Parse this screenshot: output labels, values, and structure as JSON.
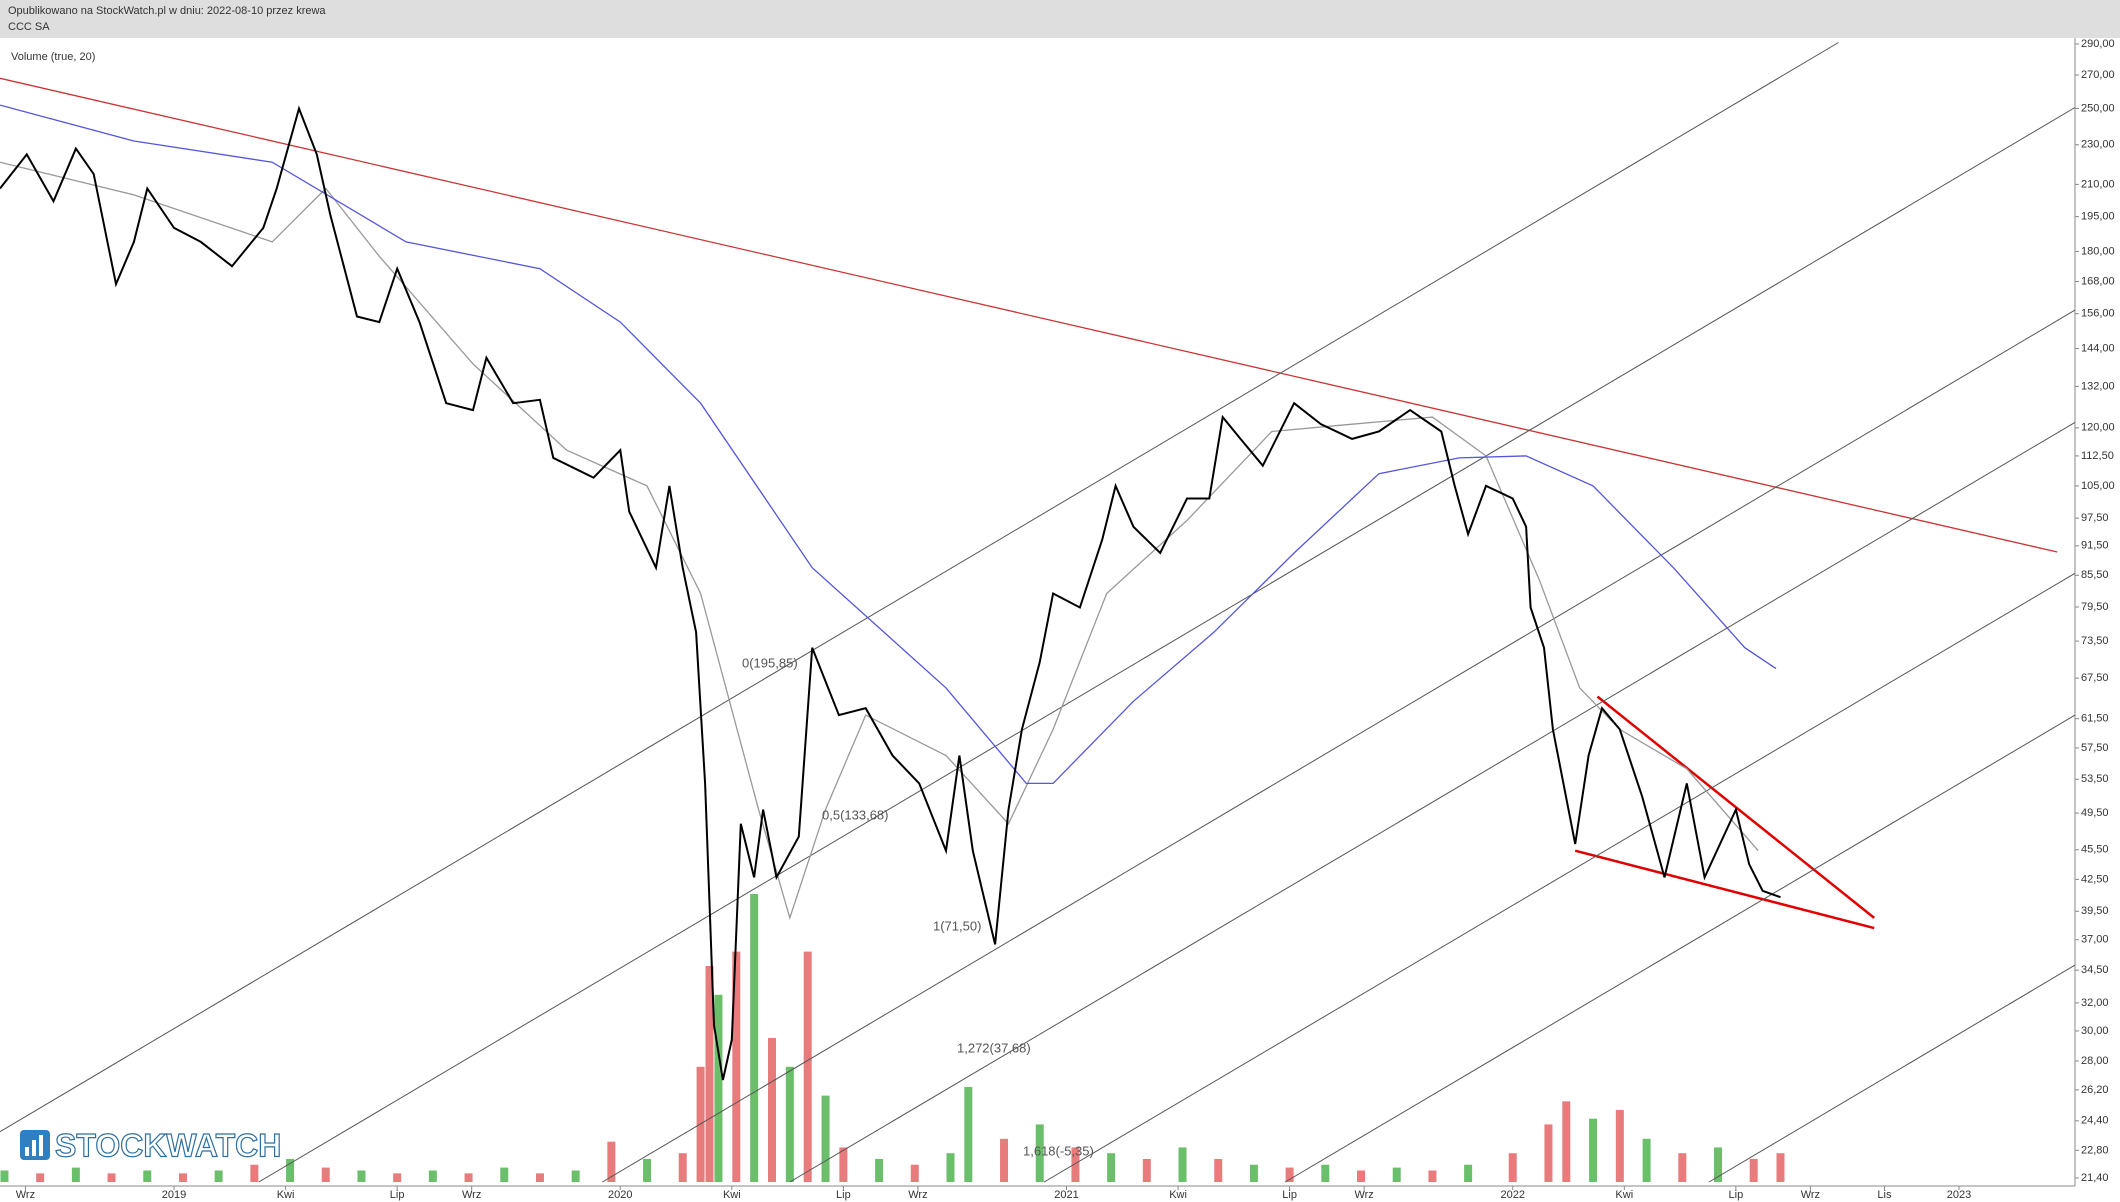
{
  "header": {
    "published": "Opublikowano na StockWatch.pl w dniu: 2022-08-10 przez krewa",
    "instrument": "CCC SA"
  },
  "chart_data": {
    "type": "line",
    "log_scale": true,
    "volume_label": "Volume (true, 20)",
    "logo": "STOCKWATCH",
    "xlim": [
      2018.61,
      2023.26
    ],
    "ylim": [
      21.2,
      294
    ],
    "y2lim": [
      0,
      100
    ],
    "xticks": [
      {
        "value": 2018.667,
        "label": "Wrz"
      },
      2019,
      {
        "value": 2019.25,
        "label": "Kwi"
      },
      {
        "value": 2019.5,
        "label": "Lip"
      },
      {
        "value": 2019.667,
        "label": "Wrz"
      },
      2020,
      {
        "value": 2020.25,
        "label": "Kwi"
      },
      {
        "value": 2020.5,
        "label": "Lip"
      },
      {
        "value": 2020.667,
        "label": "Wrz"
      },
      2021,
      {
        "value": 2021.25,
        "label": "Kwi"
      },
      {
        "value": 2021.5,
        "label": "Lip"
      },
      {
        "value": 2021.667,
        "label": "Wrz"
      },
      2022,
      {
        "value": 2022.25,
        "label": "Kwi"
      },
      {
        "value": 2022.5,
        "label": "Lip"
      },
      {
        "value": 2022.667,
        "label": "Wrz"
      },
      {
        "value": 2022.833,
        "label": "Lis"
      },
      2023
    ],
    "yticks": [
      {
        "value": 290,
        "label": "290,00"
      },
      {
        "value": 270,
        "label": "270,00"
      },
      {
        "value": 250,
        "label": "250,00"
      },
      {
        "value": 230,
        "label": "230,00"
      },
      {
        "value": 210,
        "label": "210,00"
      },
      {
        "value": 195,
        "label": "195,00"
      },
      {
        "value": 180,
        "label": "180,00"
      },
      {
        "value": 168,
        "label": "168,00"
      },
      {
        "value": 156,
        "label": "156,00"
      },
      {
        "value": 144,
        "label": "144,00"
      },
      {
        "value": 132,
        "label": "132,00"
      },
      {
        "value": 120,
        "label": "120,00"
      },
      {
        "value": 112.5,
        "label": "112,50"
      },
      {
        "value": 105,
        "label": "105,00"
      },
      {
        "value": 97.5,
        "label": "97,50"
      },
      {
        "value": 91.5,
        "label": "91,50"
      },
      {
        "value": 85.5,
        "label": "85,50"
      },
      {
        "value": 79.5,
        "label": "79,50"
      },
      {
        "value": 73.5,
        "label": "73,50"
      },
      {
        "value": 67.5,
        "label": "67,50"
      },
      {
        "value": 61.5,
        "label": "61,50"
      },
      {
        "value": 57.5,
        "label": "57,50"
      },
      {
        "value": 53.5,
        "label": "53,50"
      },
      {
        "value": 49.5,
        "label": "49,50"
      },
      {
        "value": 45.5,
        "label": "45,50"
      },
      {
        "value": 42.5,
        "label": "42,50"
      },
      {
        "value": 39.5,
        "label": "39,50"
      },
      {
        "value": 37,
        "label": "37,00"
      },
      {
        "value": 34.5,
        "label": "34,50"
      },
      {
        "value": 32,
        "label": "32,00"
      },
      {
        "value": 30,
        "label": "30,00"
      },
      {
        "value": 28,
        "label": "28,00"
      },
      {
        "value": 26.2,
        "label": "26,20"
      },
      {
        "value": 24.4,
        "label": "24,40"
      },
      {
        "value": 22.8,
        "label": "22,80"
      },
      {
        "value": 21.4,
        "label": "21,40"
      }
    ],
    "series": [
      {
        "color": "#000000",
        "width": 2,
        "x": [
          2018.61,
          2018.67,
          2018.73,
          2018.78,
          2018.82,
          2018.87,
          2018.91,
          2018.94,
          2019.0,
          2019.06,
          2019.13,
          2019.2,
          2019.23,
          2019.28,
          2019.32,
          2019.35,
          2019.41,
          2019.46,
          2019.5,
          2019.55,
          2019.61,
          2019.67,
          2019.7,
          2019.76,
          2019.82,
          2019.85,
          2019.94,
          2020.0,
          2020.02,
          2020.08,
          2020.11,
          2020.14,
          2020.17,
          2020.19,
          2020.21,
          2020.23,
          2020.25,
          2020.27,
          2020.3,
          2020.32,
          2020.35,
          2020.4,
          2020.43,
          2020.49,
          2020.55,
          2020.61,
          2020.67,
          2020.73,
          2020.76,
          2020.79,
          2020.84,
          2020.87,
          2020.9,
          2020.94,
          2020.97,
          2021.03,
          2021.08,
          2021.11,
          2021.15,
          2021.21,
          2021.27,
          2021.32,
          2021.35,
          2021.39,
          2021.44,
          2021.51,
          2021.57,
          2021.64,
          2021.7,
          2021.77,
          2021.84,
          2021.87,
          2021.9,
          2021.94,
          2022.0,
          2022.03,
          2022.04,
          2022.07,
          2022.09,
          2022.14,
          2022.17,
          2022.2,
          2022.24,
          2022.29,
          2022.34,
          2022.39,
          2022.43,
          2022.5,
          2022.53,
          2022.56,
          2022.6
        ],
        "values": [
          208,
          225,
          202,
          228,
          215,
          167,
          184,
          208,
          190,
          184,
          174,
          190,
          208,
          250,
          225,
          196,
          155,
          153,
          173,
          153,
          127,
          125,
          141,
          127,
          128,
          112,
          107,
          114,
          99,
          87,
          105,
          87,
          75,
          53,
          30.4,
          26.8,
          29.4,
          48.3,
          42.7,
          49.9,
          42.7,
          46.9,
          72.4,
          62,
          63,
          56.5,
          53,
          45.4,
          56.5,
          45.4,
          36.6,
          49.9,
          60,
          70,
          82,
          79.4,
          92.8,
          105,
          95.6,
          90,
          102,
          102,
          123,
          117,
          110,
          127,
          121,
          117,
          119,
          125,
          119,
          105,
          94,
          105,
          102,
          95.6,
          79.4,
          72.4,
          60,
          46.1,
          56.5,
          63,
          60,
          51.4,
          42.7,
          53,
          42.7,
          49.9,
          44,
          41.4,
          40.8
        ]
      },
      {
        "color": "#5555dd",
        "width": 1.3,
        "x": [
          2018.61,
          2018.91,
          2019.22,
          2019.52,
          2019.82,
          2020.0,
          2020.18,
          2020.43,
          2020.73,
          2020.91,
          2020.97,
          2021.15,
          2021.33,
          2021.51,
          2021.7,
          2021.88,
          2022.03,
          2022.18,
          2022.36,
          2022.52,
          2022.59
        ],
        "values": [
          252,
          232,
          221,
          184,
          173,
          153,
          127,
          87,
          66,
          53,
          53,
          64,
          75,
          90,
          108,
          112,
          112.5,
          105,
          87,
          72.4,
          69
        ]
      },
      {
        "color": "#999999",
        "width": 1.3,
        "x": [
          2018.61,
          2018.91,
          2019.22,
          2019.34,
          2019.46,
          2019.67,
          2019.88,
          2020.06,
          2020.18,
          2020.31,
          2020.38,
          2020.46,
          2020.55,
          2020.73,
          2020.87,
          2020.97,
          2021.09,
          2021.27,
          2021.46,
          2021.64,
          2021.82,
          2021.94,
          2022.06,
          2022.15,
          2022.24,
          2022.39,
          2022.55
        ],
        "values": [
          221,
          205,
          184,
          208,
          178,
          139,
          114,
          105,
          82,
          49.9,
          38.9,
          49.9,
          62,
          56.5,
          48.3,
          60,
          82,
          97,
          119,
          121,
          123,
          112.5,
          84.5,
          66,
          60,
          54.8,
          45.4
        ]
      }
    ],
    "lines": [
      {
        "color": "#cc3333",
        "width": 1.3,
        "x": [
          2018.61,
          2023.22
        ],
        "values": [
          268,
          90.2
        ]
      },
      {
        "color": "#e00000",
        "width": 2.5,
        "x": [
          2022.19,
          2022.81
        ],
        "values": [
          64.7,
          38.9
        ]
      },
      {
        "color": "#e00000",
        "width": 2.5,
        "x": [
          2022.14,
          2022.81
        ],
        "values": [
          45.4,
          38.0
        ]
      },
      {
        "color": "#555555",
        "width": 1,
        "x": [
          2018.61,
          2022.73
        ],
        "values": [
          23.8,
          291
        ]
      },
      {
        "color": "#555555",
        "width": 1,
        "x": [
          2019.19,
          2023.26
        ],
        "values": [
          21.2,
          250.6
        ]
      },
      {
        "color": "#555555",
        "width": 1,
        "x": [
          2019.96,
          2023.26
        ],
        "values": [
          21.2,
          157.3
        ]
      },
      {
        "color": "#555555",
        "width": 1,
        "x": [
          2020.38,
          2023.26
        ],
        "values": [
          21.2,
          121.5
        ]
      },
      {
        "color": "#555555",
        "width": 1,
        "x": [
          2020.95,
          2023.26
        ],
        "values": [
          21.2,
          85.9
        ]
      },
      {
        "color": "#555555",
        "width": 1,
        "x": [
          2021.49,
          2023.26
        ],
        "values": [
          21.2,
          62.0
        ]
      },
      {
        "color": "#555555",
        "width": 1,
        "x": [
          2022.44,
          2023.26
        ],
        "values": [
          21.2,
          34.9
        ]
      }
    ],
    "volume": {
      "axis": "y2",
      "x": [
        2018.62,
        2018.7,
        2018.78,
        2018.86,
        2018.94,
        2019.02,
        2019.1,
        2019.18,
        2019.26,
        2019.34,
        2019.42,
        2019.5,
        2019.58,
        2019.66,
        2019.74,
        2019.82,
        2019.9,
        2019.98,
        2020.06,
        2020.14,
        2020.18,
        2020.2,
        2020.22,
        2020.26,
        2020.3,
        2020.34,
        2020.38,
        2020.42,
        2020.46,
        2020.5,
        2020.58,
        2020.66,
        2020.74,
        2020.78,
        2020.86,
        2020.94,
        2021.02,
        2021.1,
        2021.18,
        2021.26,
        2021.34,
        2021.42,
        2021.5,
        2021.58,
        2021.66,
        2021.74,
        2021.82,
        2021.9,
        2022.0,
        2022.08,
        2022.12,
        2022.18,
        2022.24,
        2022.3,
        2022.38,
        2022.46,
        2022.54,
        2022.6
      ],
      "values": [
        4,
        3,
        5,
        3,
        4,
        3,
        4,
        6,
        8,
        5,
        4,
        3,
        4,
        3,
        5,
        3,
        4,
        14,
        8,
        10,
        40,
        75,
        65,
        80,
        100,
        50,
        40,
        80,
        30,
        12,
        8,
        6,
        10,
        33,
        15,
        20,
        12,
        10,
        8,
        12,
        8,
        6,
        5,
        6,
        4,
        5,
        4,
        6,
        10,
        20,
        28,
        22,
        25,
        15,
        10,
        12,
        8,
        10
      ],
      "colors": [
        "#6bbf6b",
        "#e87c7c",
        "#6bbf6b",
        "#e87c7c",
        "#6bbf6b",
        "#e87c7c",
        "#6bbf6b",
        "#e87c7c",
        "#6bbf6b",
        "#e87c7c",
        "#6bbf6b",
        "#e87c7c",
        "#6bbf6b",
        "#e87c7c",
        "#6bbf6b",
        "#e87c7c",
        "#6bbf6b",
        "#e87c7c",
        "#6bbf6b",
        "#e87c7c",
        "#e87c7c",
        "#e87c7c",
        "#6bbf6b",
        "#e87c7c",
        "#6bbf6b",
        "#e87c7c",
        "#6bbf6b",
        "#e87c7c",
        "#6bbf6b",
        "#e87c7c",
        "#6bbf6b",
        "#e87c7c",
        "#6bbf6b",
        "#6bbf6b",
        "#e87c7c",
        "#6bbf6b",
        "#e87c7c",
        "#6bbf6b",
        "#e87c7c",
        "#6bbf6b",
        "#e87c7c",
        "#6bbf6b",
        "#e87c7c",
        "#6bbf6b",
        "#e87c7c",
        "#6bbf6b",
        "#e87c7c",
        "#6bbf6b",
        "#e87c7c",
        "#e87c7c",
        "#e87c7c",
        "#6bbf6b",
        "#e87c7c",
        "#6bbf6b",
        "#e87c7c",
        "#6bbf6b",
        "#e87c7c",
        "#e87c7c"
      ]
    },
    "annotations": [
      "0(195,85)",
      "0,5(133,68)",
      "1(71,50)",
      "1,272(37,68)",
      "1,618(-5,35)"
    ]
  }
}
